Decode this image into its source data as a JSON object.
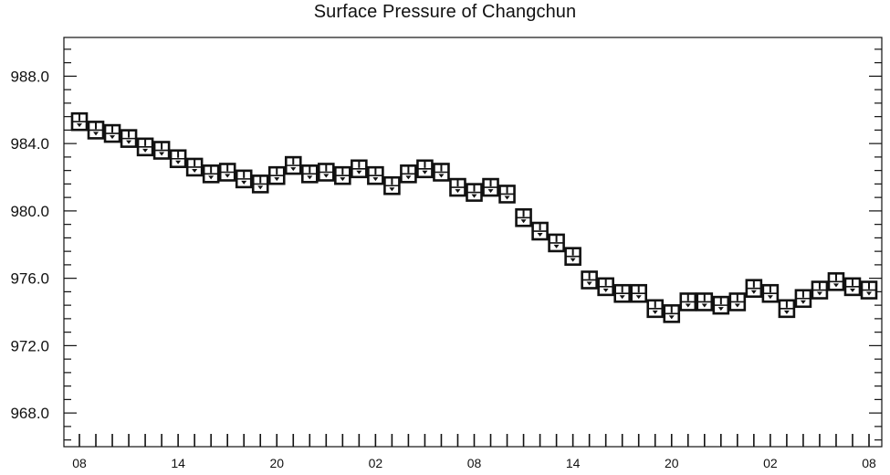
{
  "chart_data": {
    "type": "line",
    "title": "Surface Pressure of Changchun",
    "xlabel": "",
    "ylabel": "",
    "x_ticks": [
      "08",
      "14",
      "20",
      "02",
      "08",
      "14",
      "20",
      "02",
      "08"
    ],
    "y_ticks": [
      "968.0",
      "972.0",
      "976.0",
      "980.0",
      "984.0",
      "988.0"
    ],
    "ylim": [
      966.0,
      990.3
    ],
    "grid": false,
    "legend": "none",
    "series": [
      {
        "marker": "box-symbol",
        "values": [
          985.3,
          984.8,
          984.6,
          984.3,
          983.8,
          983.6,
          983.1,
          982.6,
          982.2,
          982.3,
          981.9,
          981.6,
          982.1,
          982.7,
          982.2,
          982.3,
          982.1,
          982.5,
          982.1,
          981.5,
          982.2,
          982.5,
          982.3,
          981.4,
          981.1,
          981.4,
          981.0,
          979.6,
          978.8,
          978.1,
          977.3,
          975.9,
          975.5,
          975.1,
          975.1,
          974.2,
          973.9,
          974.6,
          974.6,
          974.4,
          974.6,
          975.4,
          975.1,
          974.2,
          974.8,
          975.3,
          975.8,
          975.5,
          975.3
        ]
      }
    ],
    "colors": {
      "ink": "#111111",
      "background": "#ffffff"
    }
  }
}
